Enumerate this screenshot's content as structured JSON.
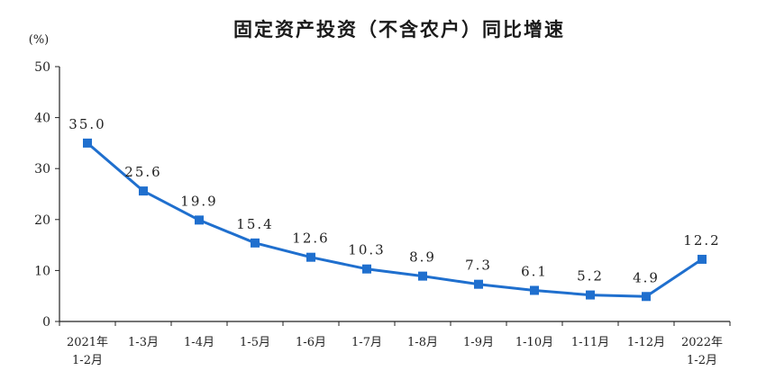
{
  "chart_data": {
    "type": "line",
    "title": "固定资产投资（不含农户）同比增速",
    "unit_label": "(%)",
    "categories": [
      [
        "2021年",
        "1-2月"
      ],
      [
        "1-3月"
      ],
      [
        "1-4月"
      ],
      [
        "1-5月"
      ],
      [
        "1-6月"
      ],
      [
        "1-7月"
      ],
      [
        "1-8月"
      ],
      [
        "1-9月"
      ],
      [
        "1-10月"
      ],
      [
        "1-11月"
      ],
      [
        "1-12月"
      ],
      [
        "2022年",
        "1-2月"
      ]
    ],
    "values": [
      35.0,
      25.6,
      19.9,
      15.4,
      12.6,
      10.3,
      8.9,
      7.3,
      6.1,
      5.2,
      4.9,
      12.2
    ],
    "data_labels": [
      "35.0",
      "25.6",
      "19.9",
      "15.4",
      "12.6",
      "10.3",
      "8.9",
      "7.3",
      "6.1",
      "5.2",
      "4.9",
      "12.2"
    ],
    "ylim": [
      0,
      50
    ],
    "yticks": [
      "0",
      "10",
      "20",
      "30",
      "40",
      "50"
    ],
    "ytick_values": [
      0,
      10,
      20,
      30,
      40,
      50
    ],
    "grid": false,
    "line_color": "#1f6fce"
  }
}
